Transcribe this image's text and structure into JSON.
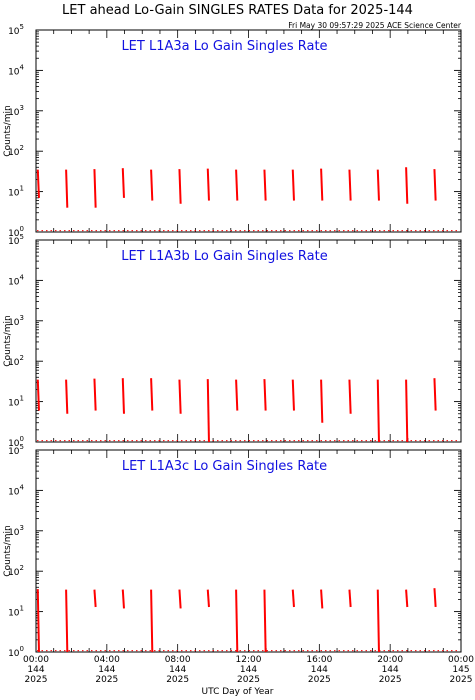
{
  "title": "LET ahead Lo-Gain SINGLES RATES Data for 2025-144",
  "timestamp": "Fri May 30 09:57:29 2025 ACE Science Center",
  "xlabel": "UTC Day of Year",
  "colors": {
    "trace": "#ff0000",
    "panel_title": "#1010e0"
  },
  "x_axis": {
    "range_hours": [
      0,
      24
    ],
    "ticks": [
      {
        "hour": 0,
        "time": "00:00",
        "doy": "144",
        "year": "2025"
      },
      {
        "hour": 4,
        "time": "04:00",
        "doy": "144",
        "year": "2025"
      },
      {
        "hour": 8,
        "time": "08:00",
        "doy": "144",
        "year": "2025"
      },
      {
        "hour": 12,
        "time": "12:00",
        "doy": "144",
        "year": "2025"
      },
      {
        "hour": 16,
        "time": "16:00",
        "doy": "144",
        "year": "2025"
      },
      {
        "hour": 20,
        "time": "20:00",
        "doy": "144",
        "year": "2025"
      },
      {
        "hour": 24,
        "time": "00:00",
        "doy": "145",
        "year": "2025"
      }
    ]
  },
  "chart_data": [
    {
      "type": "line",
      "title": "LET L1A3a Lo Gain Singles Rate",
      "ylabel": "Counts/min",
      "yscale": "log",
      "ylim": [
        1,
        100000
      ],
      "yticks": [
        {
          "exp": "0"
        },
        {
          "exp": "1"
        },
        {
          "exp": "2"
        },
        {
          "exp": "3"
        },
        {
          "exp": "4"
        },
        {
          "exp": "5"
        }
      ],
      "spikes": [
        {
          "x": 0.1,
          "y_top": 35,
          "y_bottom": 7
        },
        {
          "x": 1.7,
          "y_top": 35,
          "y_bottom": 4
        },
        {
          "x": 3.3,
          "y_top": 36,
          "y_bottom": 4
        },
        {
          "x": 4.9,
          "y_top": 38,
          "y_bottom": 7
        },
        {
          "x": 6.5,
          "y_top": 35,
          "y_bottom": 6
        },
        {
          "x": 8.1,
          "y_top": 36,
          "y_bottom": 5
        },
        {
          "x": 9.7,
          "y_top": 37,
          "y_bottom": 6
        },
        {
          "x": 11.3,
          "y_top": 35,
          "y_bottom": 6
        },
        {
          "x": 12.9,
          "y_top": 35,
          "y_bottom": 6
        },
        {
          "x": 14.5,
          "y_top": 35,
          "y_bottom": 6
        },
        {
          "x": 16.1,
          "y_top": 37,
          "y_bottom": 6
        },
        {
          "x": 17.7,
          "y_top": 35,
          "y_bottom": 6
        },
        {
          "x": 19.3,
          "y_top": 35,
          "y_bottom": 6
        },
        {
          "x": 20.9,
          "y_top": 40,
          "y_bottom": 5
        },
        {
          "x": 22.5,
          "y_top": 36,
          "y_bottom": 6
        }
      ]
    },
    {
      "type": "line",
      "title": "LET L1A3b Lo Gain Singles Rate",
      "ylabel": "Counts/min",
      "yscale": "log",
      "ylim": [
        1,
        100000
      ],
      "yticks": [
        {
          "exp": "0"
        },
        {
          "exp": "1"
        },
        {
          "exp": "2"
        },
        {
          "exp": "3"
        },
        {
          "exp": "4"
        },
        {
          "exp": "5"
        }
      ],
      "spikes": [
        {
          "x": 0.1,
          "y_top": 35,
          "y_bottom": 6
        },
        {
          "x": 1.7,
          "y_top": 35,
          "y_bottom": 5
        },
        {
          "x": 3.3,
          "y_top": 37,
          "y_bottom": 6
        },
        {
          "x": 4.9,
          "y_top": 38,
          "y_bottom": 5
        },
        {
          "x": 6.5,
          "y_top": 38,
          "y_bottom": 6
        },
        {
          "x": 8.1,
          "y_top": 35,
          "y_bottom": 5
        },
        {
          "x": 9.7,
          "y_top": 36,
          "y_bottom": 0.9
        },
        {
          "x": 11.3,
          "y_top": 35,
          "y_bottom": 6
        },
        {
          "x": 12.9,
          "y_top": 36,
          "y_bottom": 6
        },
        {
          "x": 14.5,
          "y_top": 35,
          "y_bottom": 6
        },
        {
          "x": 16.1,
          "y_top": 35,
          "y_bottom": 3
        },
        {
          "x": 17.7,
          "y_top": 35,
          "y_bottom": 5
        },
        {
          "x": 19.3,
          "y_top": 35,
          "y_bottom": 0.9
        },
        {
          "x": 20.9,
          "y_top": 35,
          "y_bottom": 0.9
        },
        {
          "x": 22.5,
          "y_top": 38,
          "y_bottom": 6
        }
      ]
    },
    {
      "type": "line",
      "title": "LET L1A3c Lo Gain Singles Rate",
      "ylabel": "Counts/min",
      "yscale": "log",
      "ylim": [
        1,
        100000
      ],
      "yticks": [
        {
          "exp": "0"
        },
        {
          "exp": "1"
        },
        {
          "exp": "2"
        },
        {
          "exp": "3"
        },
        {
          "exp": "4"
        },
        {
          "exp": "5"
        }
      ],
      "spikes": [
        {
          "x": 0.1,
          "y_top": 36,
          "y_bottom": 0.9
        },
        {
          "x": 1.7,
          "y_top": 35,
          "y_bottom": 0.9
        },
        {
          "x": 3.3,
          "y_top": 35,
          "y_bottom": 13
        },
        {
          "x": 4.9,
          "y_top": 35,
          "y_bottom": 12
        },
        {
          "x": 6.5,
          "y_top": 35,
          "y_bottom": 0.9
        },
        {
          "x": 8.1,
          "y_top": 35,
          "y_bottom": 12
        },
        {
          "x": 9.7,
          "y_top": 35,
          "y_bottom": 13
        },
        {
          "x": 11.3,
          "y_top": 35,
          "y_bottom": 0.9
        },
        {
          "x": 12.9,
          "y_top": 35,
          "y_bottom": 0.9
        },
        {
          "x": 14.5,
          "y_top": 35,
          "y_bottom": 13
        },
        {
          "x": 16.1,
          "y_top": 35,
          "y_bottom": 12
        },
        {
          "x": 17.7,
          "y_top": 35,
          "y_bottom": 13
        },
        {
          "x": 19.3,
          "y_top": 35,
          "y_bottom": 0.9
        },
        {
          "x": 20.9,
          "y_top": 35,
          "y_bottom": 13
        },
        {
          "x": 22.5,
          "y_top": 38,
          "y_bottom": 13
        }
      ]
    }
  ]
}
